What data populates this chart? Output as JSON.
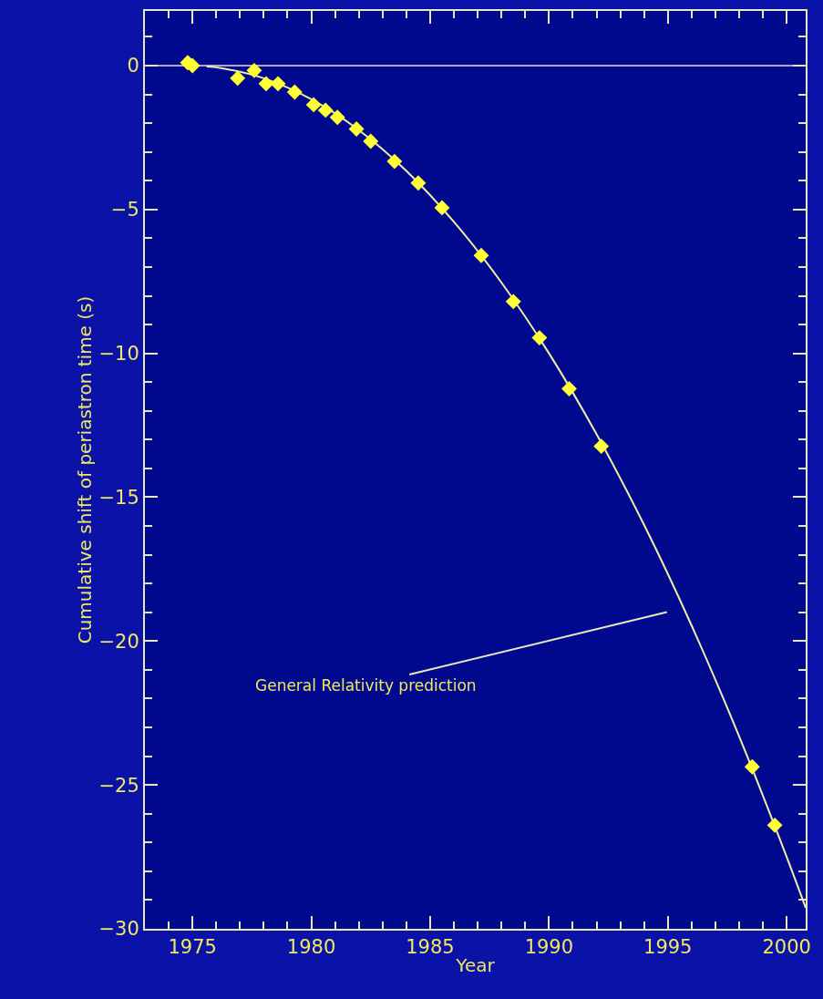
{
  "chart_data": {
    "type": "scatter",
    "xlabel": "Year",
    "ylabel": "Cumulative shift of periastron time (s)",
    "xlim": [
      1973,
      2000.8
    ],
    "ylim": [
      -30,
      1.9
    ],
    "xticks": [
      {
        "value": 1974,
        "label": null
      },
      1975,
      {
        "value": 1976,
        "label": null
      },
      {
        "value": 1977,
        "label": null
      },
      {
        "value": 1978,
        "label": null
      },
      {
        "value": 1979,
        "label": null
      },
      1980,
      {
        "value": 1981,
        "label": null
      },
      {
        "value": 1982,
        "label": null
      },
      {
        "value": 1983,
        "label": null
      },
      {
        "value": 1984,
        "label": null
      },
      1985,
      {
        "value": 1986,
        "label": null
      },
      {
        "value": 1987,
        "label": null
      },
      {
        "value": 1988,
        "label": null
      },
      {
        "value": 1989,
        "label": null
      },
      1990,
      {
        "value": 1991,
        "label": null
      },
      {
        "value": 1992,
        "label": null
      },
      {
        "value": 1993,
        "label": null
      },
      {
        "value": 1994,
        "label": null
      },
      1995,
      {
        "value": 1996,
        "label": null
      },
      {
        "value": 1997,
        "label": null
      },
      {
        "value": 1998,
        "label": null
      },
      {
        "value": 1999,
        "label": null
      },
      2000
    ],
    "yticks": [
      -30,
      {
        "value": -29,
        "label": null
      },
      {
        "value": -28,
        "label": null
      },
      {
        "value": -27,
        "label": null
      },
      {
        "value": -26,
        "label": null
      },
      -25,
      {
        "value": -24,
        "label": null
      },
      {
        "value": -23,
        "label": null
      },
      {
        "value": -22,
        "label": null
      },
      {
        "value": -21,
        "label": null
      },
      -20,
      {
        "value": -19,
        "label": null
      },
      {
        "value": -18,
        "label": null
      },
      {
        "value": -17,
        "label": null
      },
      {
        "value": -16,
        "label": null
      },
      -15,
      {
        "value": -14,
        "label": null
      },
      {
        "value": -13,
        "label": null
      },
      {
        "value": -12,
        "label": null
      },
      {
        "value": -11,
        "label": null
      },
      -10,
      {
        "value": -9,
        "label": null
      },
      {
        "value": -8,
        "label": null
      },
      {
        "value": -7,
        "label": null
      },
      {
        "value": -6,
        "label": null
      },
      -5,
      {
        "value": -4,
        "label": null
      },
      {
        "value": -3,
        "label": null
      },
      {
        "value": -2,
        "label": null
      },
      {
        "value": -1,
        "label": null
      },
      0,
      {
        "value": 1,
        "label": null
      }
    ],
    "grid": false,
    "marker": "diamond",
    "ref_lines": [
      {
        "axis": "y",
        "value": 0,
        "color": "#a8a8c8"
      }
    ],
    "annotations": [
      "General Relativity prediction"
    ],
    "series": [
      {
        "type": "line",
        "color": "#f2eea8",
        "marker": "none",
        "x": [
          1975.6,
          1976,
          1978,
          1980,
          1982,
          1984,
          1986,
          1988,
          1990,
          1992,
          1994,
          1996,
          1998,
          2000,
          2000.8
        ],
        "values": [
          -0.03,
          -0.06,
          -0.44,
          -1.17,
          -2.24,
          -3.66,
          -5.43,
          -7.54,
          -10.0,
          -12.81,
          -15.96,
          -19.46,
          -23.31,
          -27.5,
          -29.27
        ]
      },
      {
        "color": "#ffff33",
        "x": [
          1974.8,
          1975.0,
          1976.9,
          1977.6,
          1978.1,
          1978.6,
          1979.3,
          1980.1,
          1980.6,
          1981.1,
          1981.9,
          1982.5,
          1983.5,
          1984.5,
          1985.5,
          1987.15,
          1988.5,
          1989.6,
          1990.85,
          1992.2,
          1998.55,
          1999.5
        ],
        "values": [
          0.1,
          0.0,
          -0.44,
          -0.17,
          -0.63,
          -0.63,
          -0.92,
          -1.36,
          -1.55,
          -1.8,
          -2.2,
          -2.63,
          -3.33,
          -4.08,
          -4.94,
          -6.6,
          -8.2,
          -9.46,
          -11.23,
          -13.23,
          -24.37,
          -26.4
        ]
      }
    ]
  }
}
